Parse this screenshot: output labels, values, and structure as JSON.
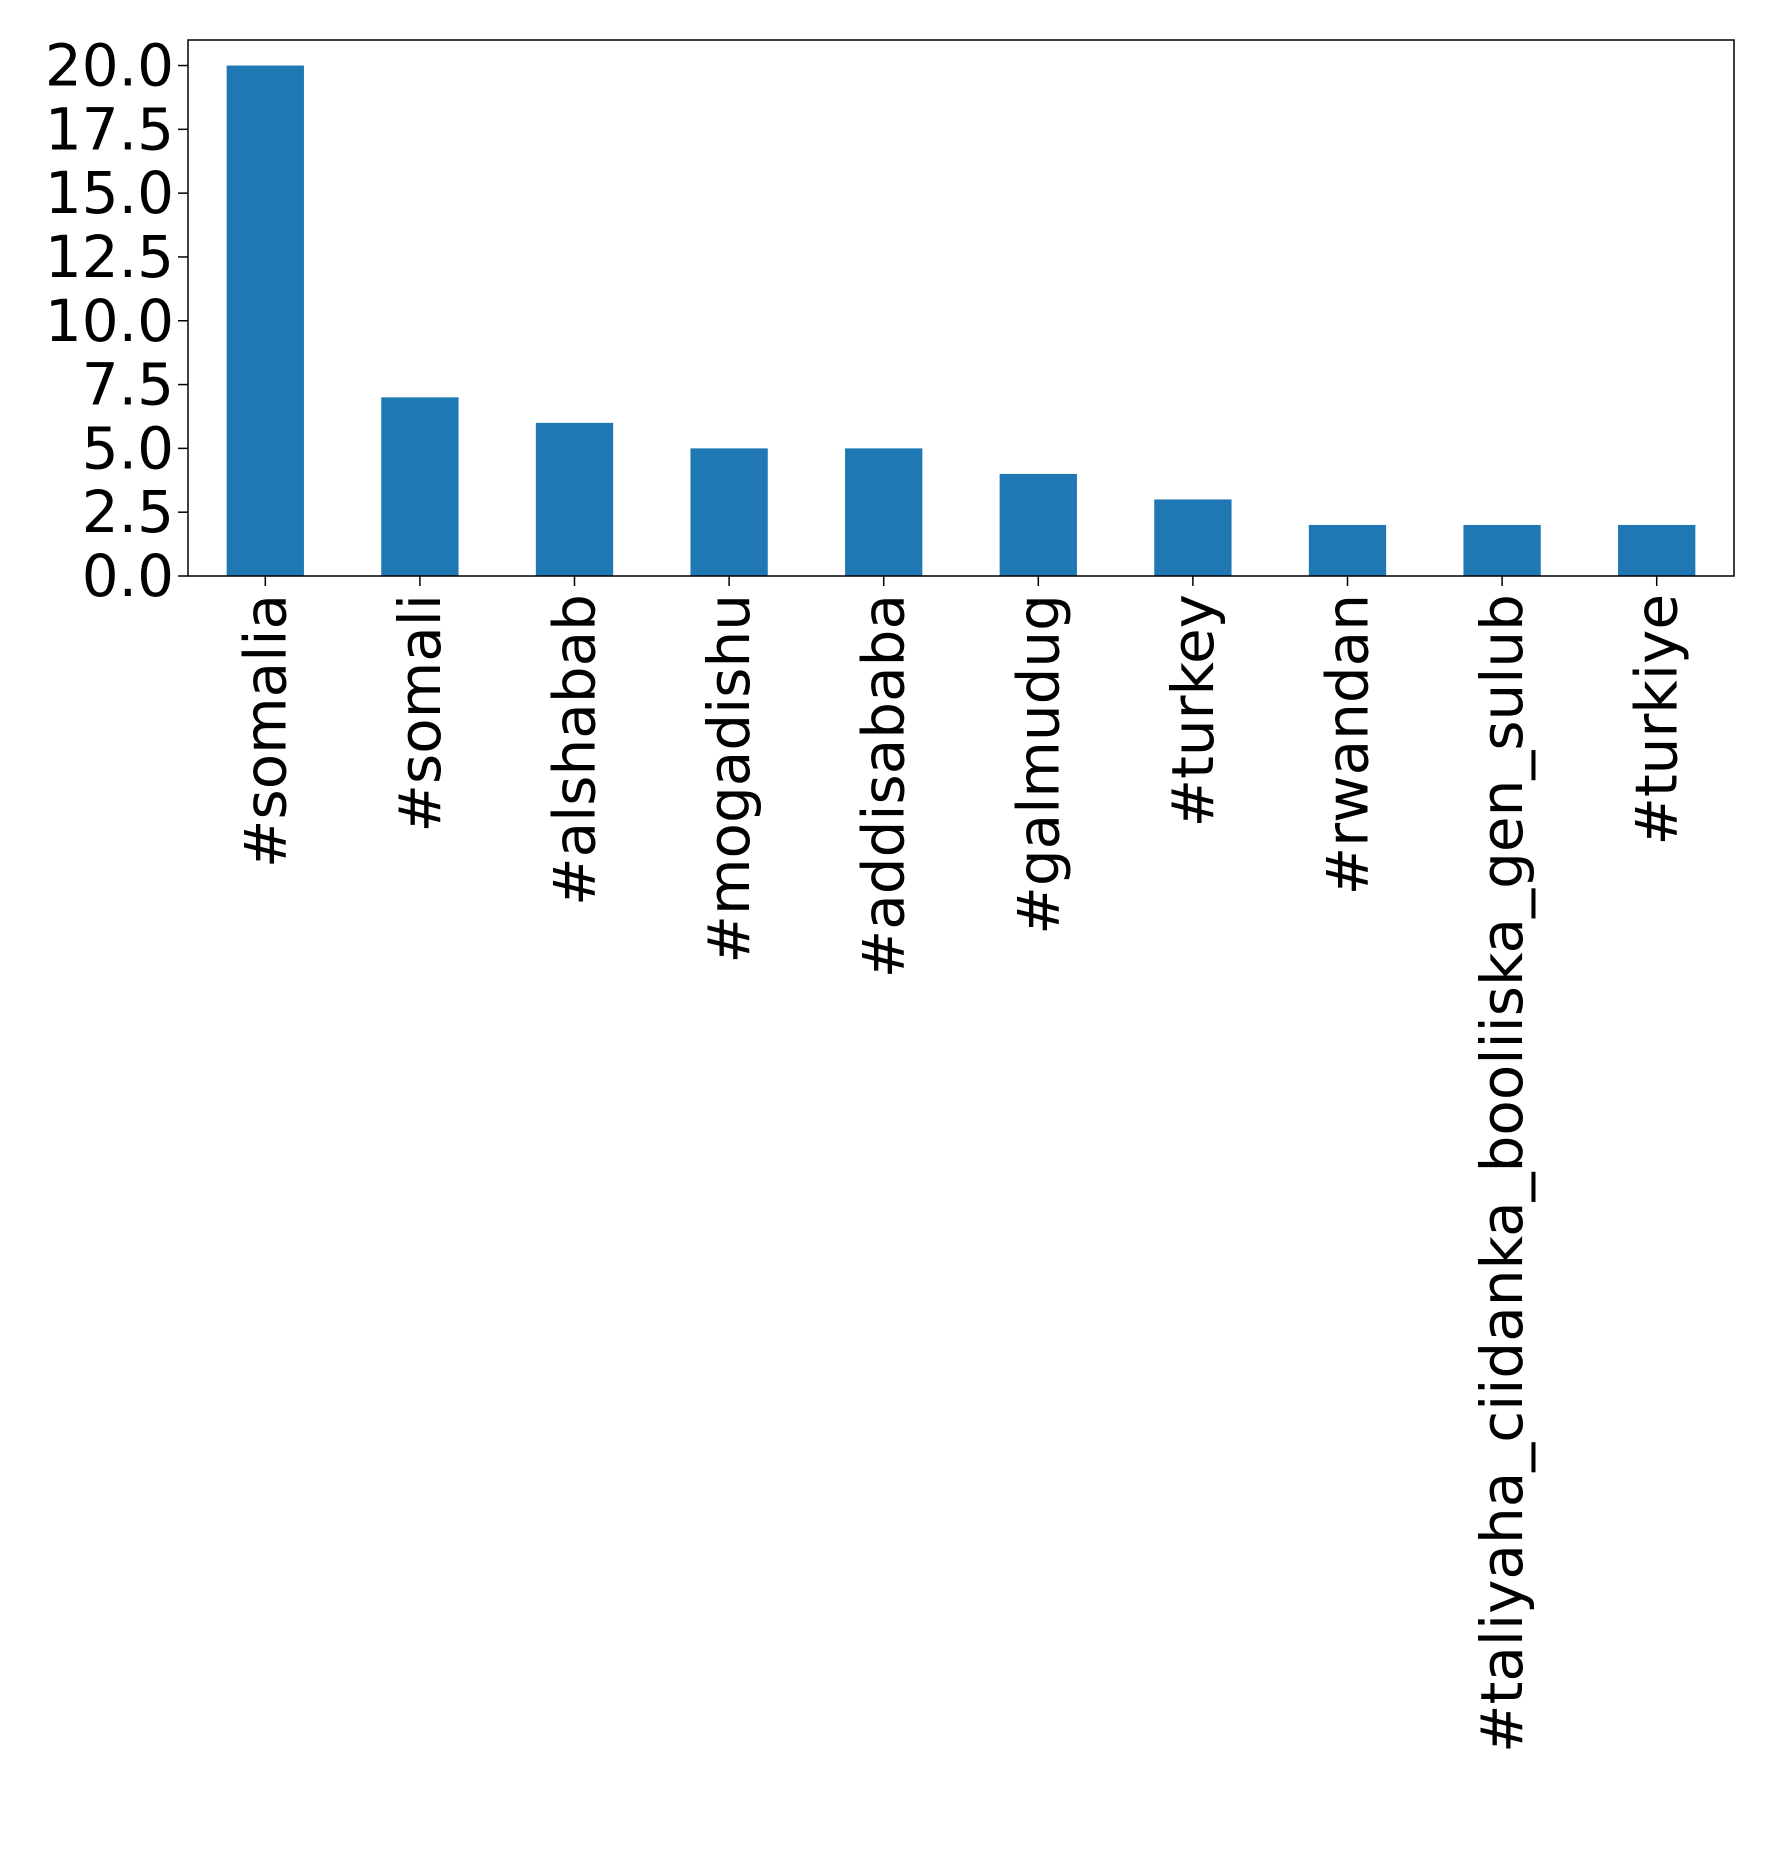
{
  "chart_data": {
    "type": "bar",
    "title": "",
    "xlabel": "",
    "ylabel": "",
    "categories": [
      "#somalia",
      "#somali",
      "#alshabab",
      "#mogadishu",
      "#addisababa",
      "#galmudug",
      "#turkey",
      "#rwandan",
      "#taliyaha_ciidanka_booliiska_gen_sulub",
      "#turkiye"
    ],
    "values": [
      20,
      7,
      6,
      5,
      5,
      4,
      3,
      2,
      2,
      2
    ],
    "ylim": [
      0,
      21
    ],
    "yticks": [
      "0.0",
      "2.5",
      "5.0",
      "7.5",
      "10.0",
      "12.5",
      "15.0",
      "17.5",
      "20.0"
    ],
    "bar_color": "#1f77b4",
    "grid": false,
    "legend": "none"
  }
}
